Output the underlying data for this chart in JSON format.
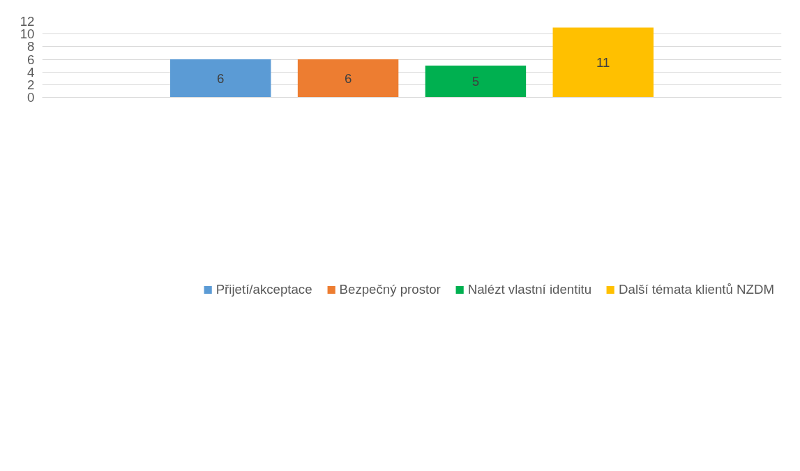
{
  "chart_data": {
    "type": "bar",
    "categories": [
      null
    ],
    "series": [
      {
        "name": "Přijetí/akceptace",
        "color": "#5b9bd5",
        "values": [
          6
        ]
      },
      {
        "name": "Bezpečný prostor",
        "color": "#ed7d31",
        "values": [
          6
        ]
      },
      {
        "name": "Nalézt vlastní identitu",
        "color": "#00b050",
        "values": [
          5
        ]
      },
      {
        "name": "Další témata klientů NZDM",
        "color": "#ffc000",
        "values": [
          11
        ]
      }
    ],
    "ylim": [
      0,
      12
    ],
    "yticks": [
      0,
      2,
      4,
      6,
      8,
      10,
      12
    ],
    "grid": "y",
    "legend": "bottom",
    "data_labels": true
  }
}
